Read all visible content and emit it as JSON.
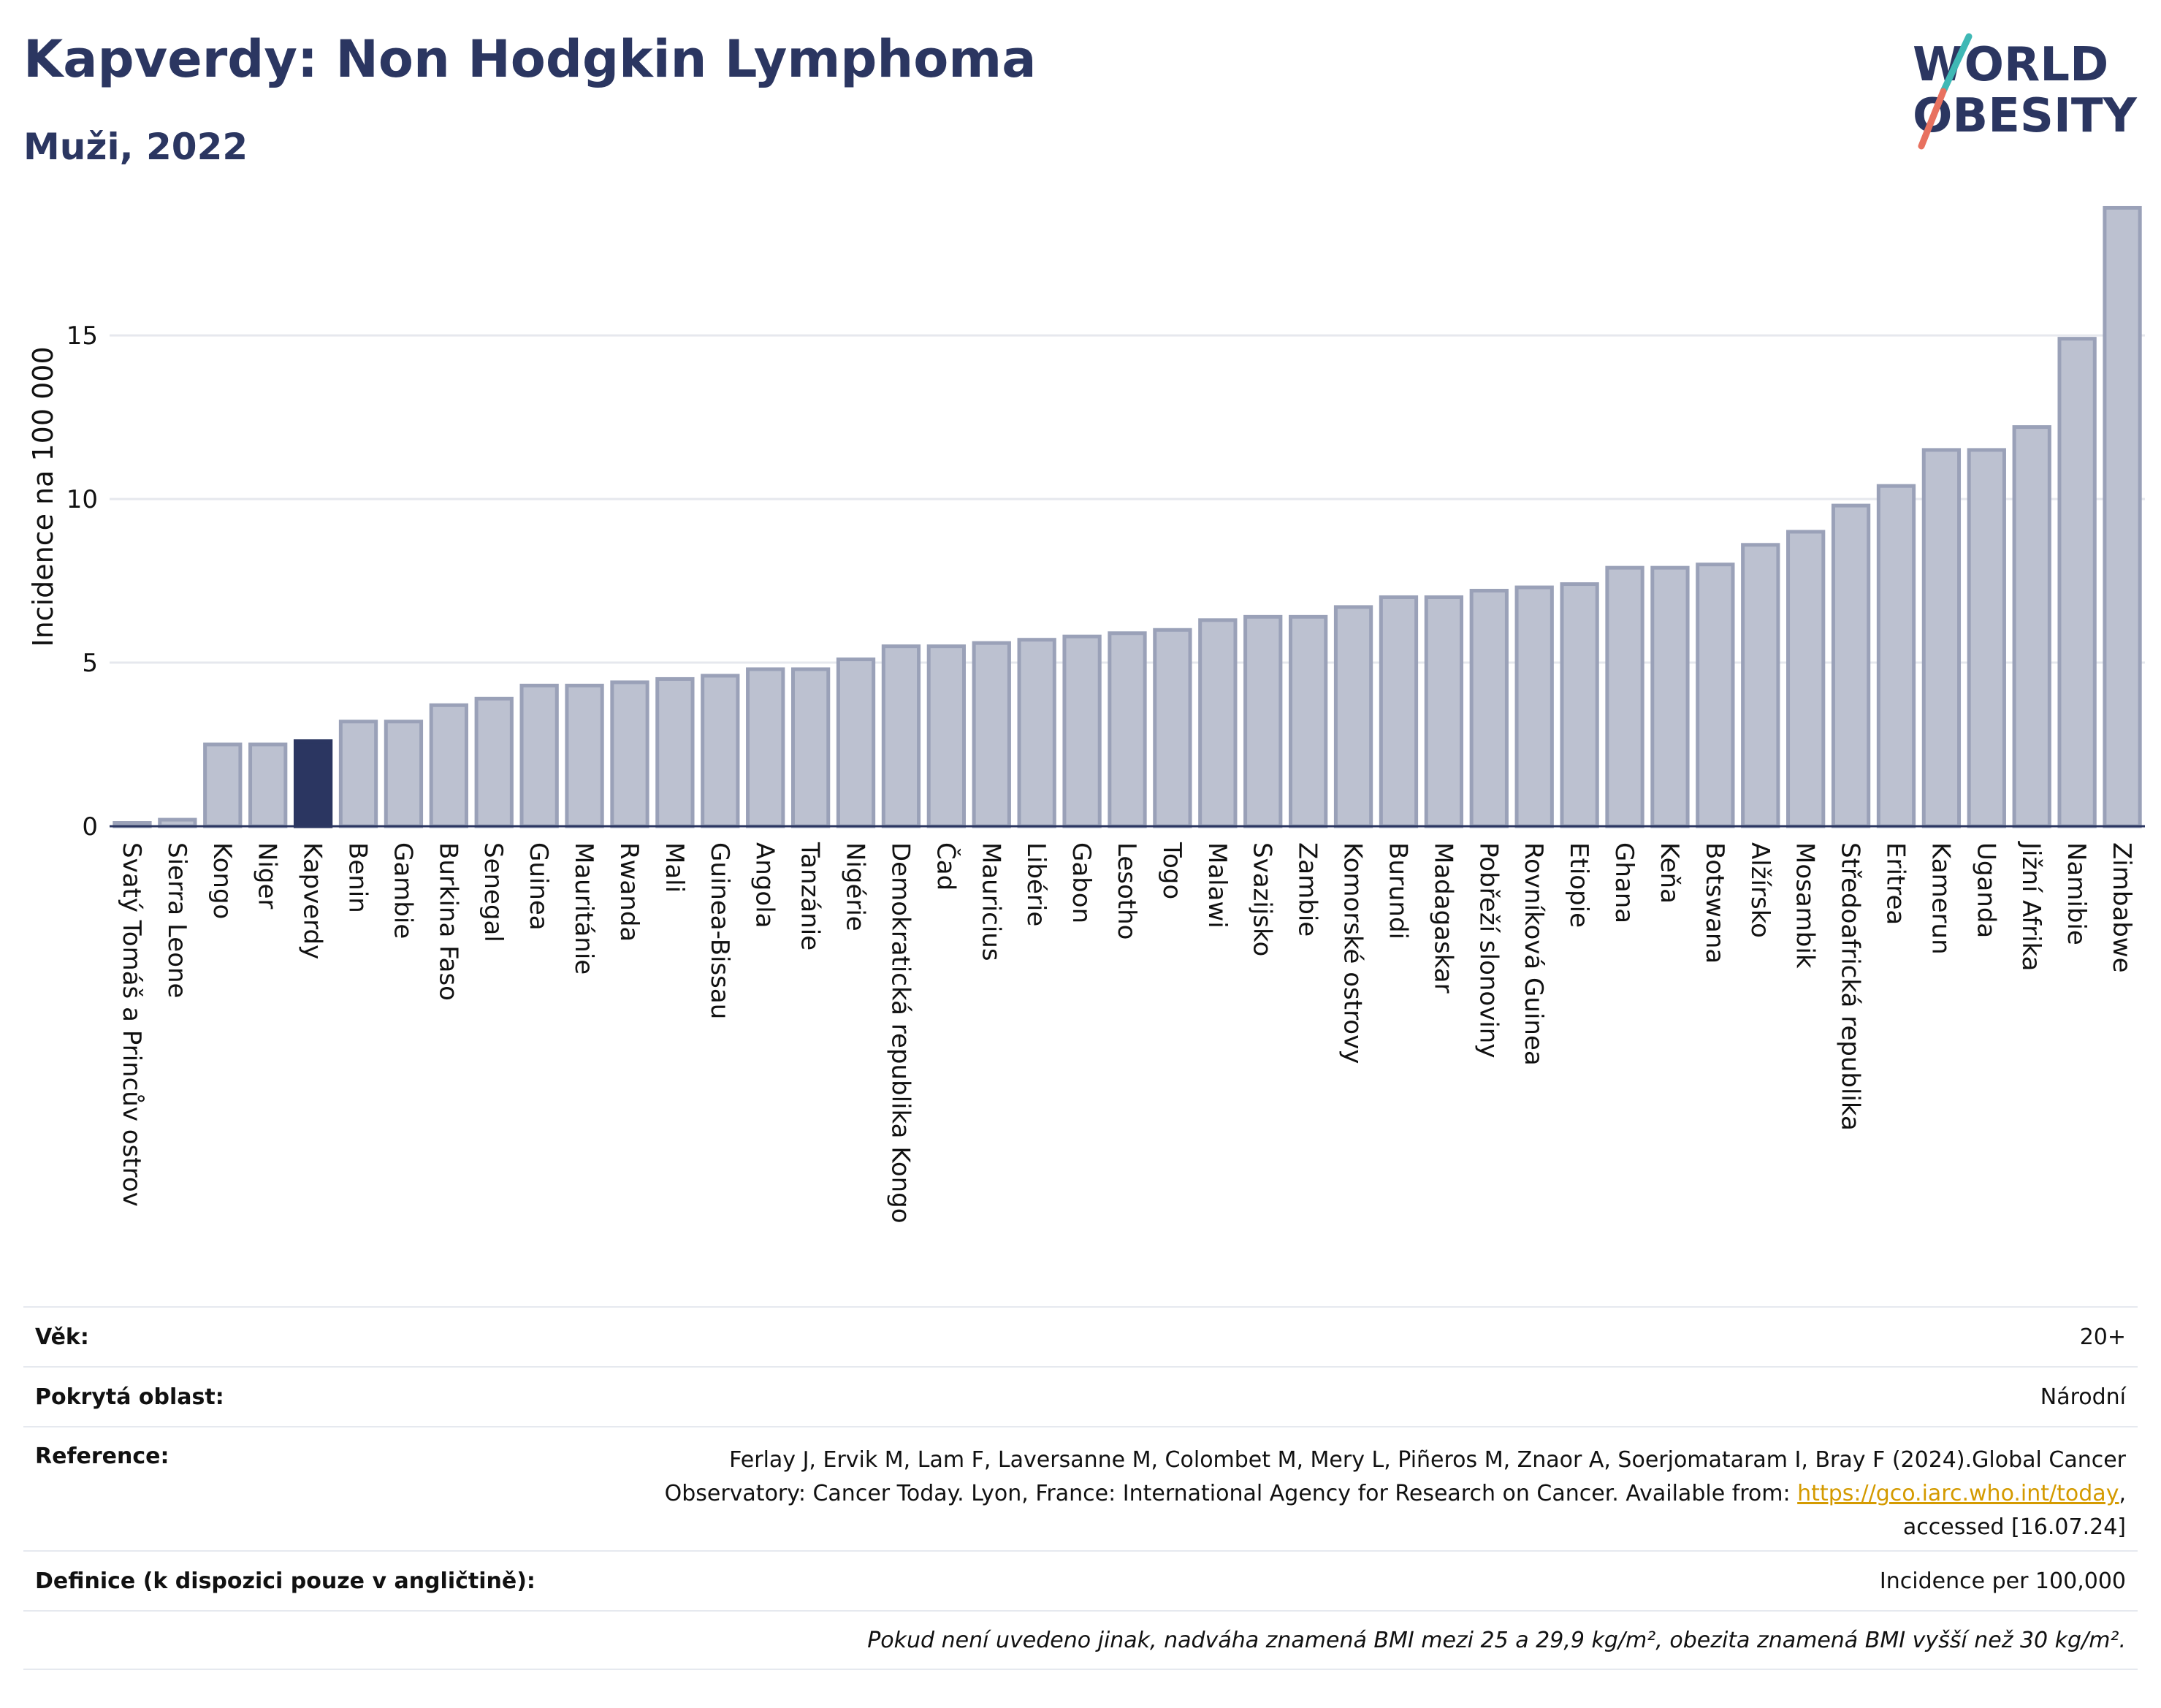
{
  "header": {
    "title": "Kapverdy: Non Hodgkin Lymphoma",
    "subtitle": "Muži, 2022"
  },
  "logo": {
    "line1": "WORLD",
    "line2": "OBESITY"
  },
  "colors": {
    "highlight": "#2b3661",
    "bar": "#bcc1d0",
    "bar_edge": "#9aa1b8",
    "accent_teal": "#3fb8b5",
    "accent_red": "#e8715f"
  },
  "chart_data": {
    "type": "bar",
    "ylabel": "Incidence na 100 000",
    "ylim": [
      0,
      19
    ],
    "yticks": [
      0,
      5,
      10,
      15
    ],
    "grid": true,
    "highlight": "Kapverdy",
    "categories": [
      "Svatý Tomáš a Princův ostrov",
      "Sierra Leone",
      "Kongo",
      "Niger",
      "Kapverdy",
      "Benin",
      "Gambie",
      "Burkina Faso",
      "Senegal",
      "Guinea",
      "Mauritánie",
      "Rwanda",
      "Mali",
      "Guinea-Bissau",
      "Angola",
      "Tanzánie",
      "Nigérie",
      "Demokratická republika Kongo",
      "Čad",
      "Mauricius",
      "Libérie",
      "Gabon",
      "Lesotho",
      "Togo",
      "Malawi",
      "Svazijsko",
      "Zambie",
      "Komorské ostrovy",
      "Burundi",
      "Madagaskar",
      "Pobřeží slonoviny",
      "Rovníková Guinea",
      "Etiopie",
      "Ghana",
      "Keňa",
      "Botswana",
      "Alžírsko",
      "Mosambik",
      "Středoafrická republika",
      "Eritrea",
      "Kamerun",
      "Uganda",
      "Jižní Afrika",
      "Namibie",
      "Zimbabwe"
    ],
    "values": [
      0.1,
      0.2,
      2.5,
      2.5,
      2.6,
      3.2,
      3.2,
      3.7,
      3.9,
      4.3,
      4.3,
      4.4,
      4.5,
      4.6,
      4.8,
      4.8,
      5.1,
      5.5,
      5.5,
      5.6,
      5.7,
      5.8,
      5.9,
      6.0,
      6.3,
      6.4,
      6.4,
      6.7,
      7.0,
      7.0,
      7.2,
      7.3,
      7.4,
      7.9,
      7.9,
      8.0,
      8.6,
      9.0,
      9.8,
      10.4,
      11.5,
      11.5,
      12.2,
      14.9,
      18.9
    ]
  },
  "info": {
    "age_label": "Věk:",
    "age_value": "20+",
    "area_label": "Pokrytá oblast:",
    "area_value": "Národní",
    "ref_label": "Reference:",
    "ref_text_1": "Ferlay J, Ervik M, Lam F, Laversanne M, Colombet M, Mery L, Piñeros M, Znaor A, Soerjomataram I, Bray F (2024).Global Cancer Observatory: Cancer Today. Lyon, France: International Agency for Research on Cancer. Available from: ",
    "ref_link": "https://gco.iarc.who.int/today",
    "ref_text_2": ", accessed [16.07.24]",
    "def_label": "Definice (k dispozici pouze v angličtině):",
    "def_value": "Incidence per 100,000",
    "note": "Pokud není uvedeno jinak, nadváha znamená BMI mezi 25 a 29,9 kg/m², obezita znamená BMI vyšší než 30 kg/m²."
  }
}
